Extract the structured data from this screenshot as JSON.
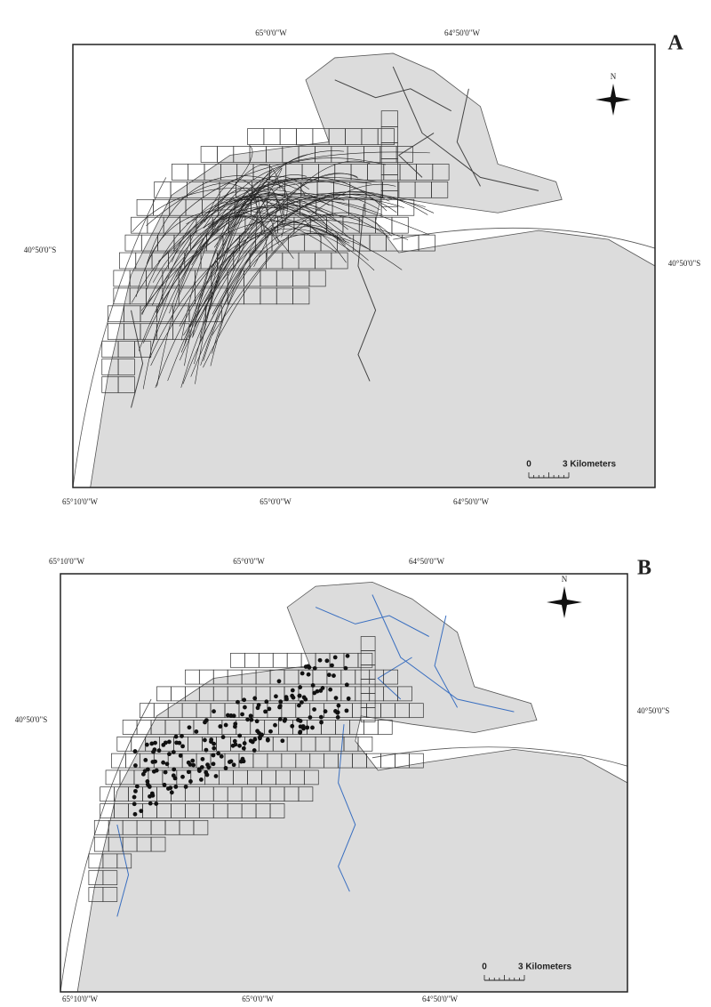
{
  "panels": [
    {
      "label": "A",
      "top_labels": [
        "65°0'0\"W",
        "64°50'0\"W"
      ],
      "bottom_labels": [
        "65°10'0\"W",
        "65°0'0\"W",
        "64°50'0\"W"
      ],
      "left_label": "40°50'0\"S",
      "right_label": "40°50'0\"S",
      "north": "N",
      "scale_start": "0",
      "scale_label": "3 Kilometers"
    },
    {
      "label": "B",
      "top_labels": [
        "65°10'0\"W",
        "65°0'0\"W",
        "64°50'0\"W"
      ],
      "bottom_labels": [
        "65°10'0\"W",
        "65°0'0\"W",
        "64°50'0\"W"
      ],
      "left_label": "40°50'0\"S",
      "right_label": "40°50'0\"S",
      "north": "N",
      "scale_start": "0",
      "scale_label": "3 Kilometers"
    }
  ]
}
